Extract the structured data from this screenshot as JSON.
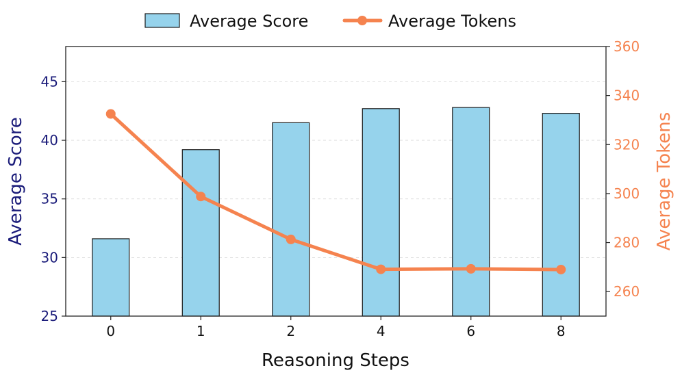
{
  "chart_data": {
    "type": "bar",
    "categories": [
      "0",
      "1",
      "2",
      "4",
      "6",
      "8"
    ],
    "xlabel": "Reasoning Steps",
    "series": [
      {
        "name": "Average Score",
        "type": "bar",
        "axis": "left",
        "values": [
          31.6,
          39.2,
          41.5,
          42.7,
          42.8,
          42.3
        ]
      },
      {
        "name": "Average Tokens",
        "type": "line",
        "axis": "right",
        "values": [
          332.5,
          298.8,
          281.3,
          269.1,
          269.3,
          269.0
        ]
      }
    ],
    "y_left": {
      "label": "Average Score",
      "ylim": [
        25,
        48
      ],
      "ticks": [
        "25",
        "30",
        "35",
        "40",
        "45"
      ]
    },
    "y_right": {
      "label": "Average Tokens",
      "ylim": [
        250,
        360
      ],
      "ticks": [
        "260",
        "280",
        "300",
        "320",
        "340",
        "360"
      ]
    },
    "grid": true,
    "legend": "top-center",
    "colors": {
      "bar_fill": "#96d3ec",
      "bar_stroke": "#1a1a1a",
      "line": "#f5834f",
      "left_axis": "#1b1c7a",
      "right_axis": "#f5834f"
    }
  }
}
